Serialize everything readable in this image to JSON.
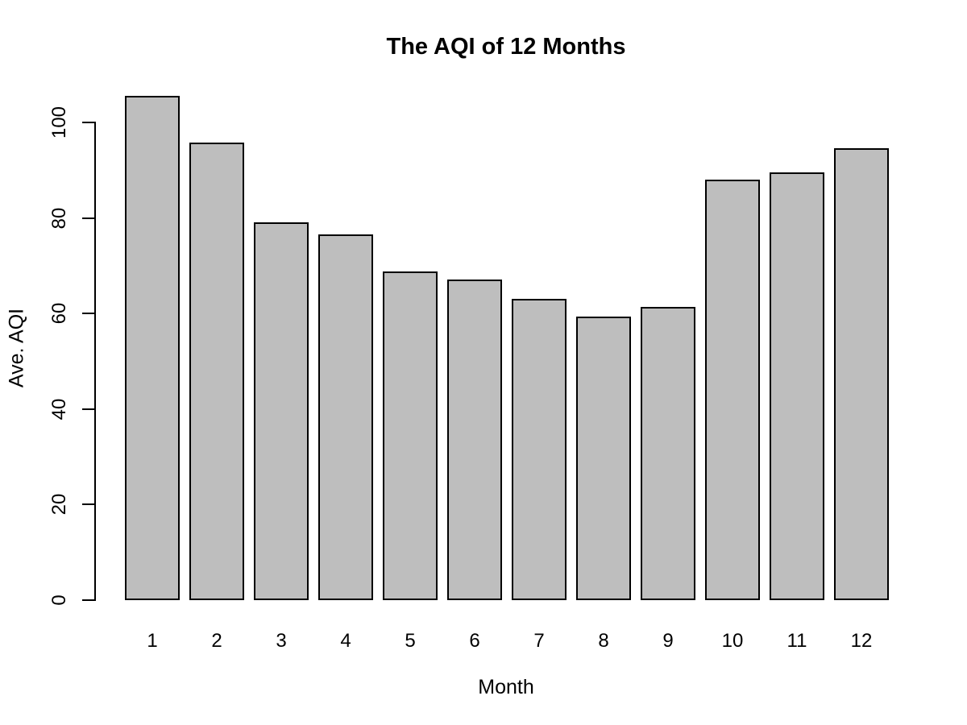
{
  "chart_data": {
    "type": "bar",
    "title": "The AQI of 12 Months",
    "xlabel": "Month",
    "ylabel": "Ave. AQI",
    "categories": [
      "1",
      "2",
      "3",
      "4",
      "5",
      "6",
      "7",
      "8",
      "9",
      "10",
      "11",
      "12"
    ],
    "values": [
      105.6,
      95.7,
      79.1,
      76.5,
      68.8,
      67.2,
      63.1,
      59.3,
      61.3,
      88.0,
      89.5,
      94.6
    ],
    "yticks": [
      0,
      20,
      40,
      60,
      80,
      100
    ],
    "ylim": [
      0,
      100
    ],
    "grid": false,
    "legend": "none",
    "bar_fill_color": "#BEBEBE",
    "bar_border_color": "#000000",
    "axis_color": "#000000",
    "background_color": "#FFFFFF"
  }
}
